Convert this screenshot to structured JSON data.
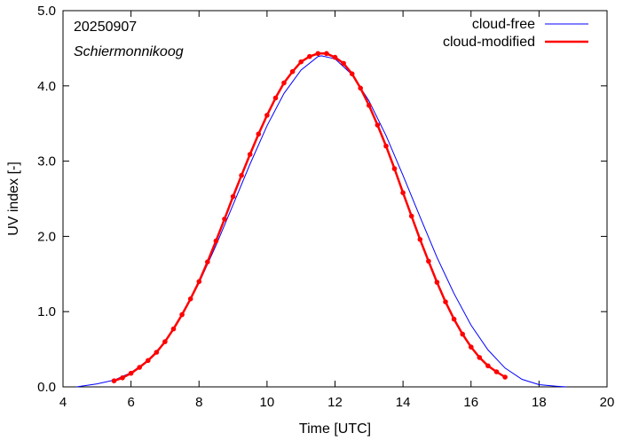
{
  "chart_data": {
    "type": "line",
    "xlabel": "Time  [UTC]",
    "ylabel": "UV index  [-]",
    "xlim": [
      4,
      20
    ],
    "ylim": [
      0.0,
      5.0
    ],
    "xticks": [
      4,
      6,
      8,
      10,
      12,
      14,
      16,
      18,
      20
    ],
    "yticks": [
      "0.0",
      "1.0",
      "2.0",
      "3.0",
      "4.0",
      "5.0"
    ],
    "grid": false,
    "legend_position": "top-right",
    "annotations": {
      "date": "20250907",
      "location": "Schiermonnikoog"
    },
    "series": [
      {
        "name": "cloud-free",
        "color": "#0000ff",
        "marker": "none",
        "x": [
          4.4,
          5.0,
          5.5,
          6.0,
          6.5,
          7.0,
          7.5,
          8.0,
          8.5,
          9.0,
          9.5,
          10.0,
          10.5,
          11.0,
          11.5,
          11.6,
          12.0,
          12.5,
          13.0,
          13.5,
          14.0,
          14.5,
          15.0,
          15.5,
          16.0,
          16.5,
          17.0,
          17.5,
          18.0,
          18.5,
          18.8
        ],
        "y": [
          0.0,
          0.04,
          0.09,
          0.19,
          0.35,
          0.6,
          0.95,
          1.38,
          1.88,
          2.42,
          2.96,
          3.47,
          3.9,
          4.21,
          4.39,
          4.4,
          4.36,
          4.15,
          3.8,
          3.34,
          2.81,
          2.26,
          1.72,
          1.24,
          0.82,
          0.49,
          0.25,
          0.1,
          0.03,
          0.01,
          0.0
        ]
      },
      {
        "name": "cloud-modified",
        "color": "#ff0000",
        "marker": "circle",
        "x": [
          5.5,
          5.75,
          6.0,
          6.25,
          6.5,
          6.75,
          7.0,
          7.25,
          7.5,
          7.75,
          8.0,
          8.25,
          8.5,
          8.75,
          9.0,
          9.25,
          9.5,
          9.75,
          10.0,
          10.25,
          10.5,
          10.75,
          11.0,
          11.25,
          11.5,
          11.75,
          12.0,
          12.25,
          12.5,
          12.75,
          13.0,
          13.25,
          13.5,
          13.75,
          14.0,
          14.25,
          14.5,
          14.75,
          15.0,
          15.25,
          15.5,
          15.75,
          16.0,
          16.25,
          16.5,
          16.75,
          17.0
        ],
        "y": [
          0.08,
          0.12,
          0.18,
          0.26,
          0.35,
          0.46,
          0.6,
          0.77,
          0.96,
          1.17,
          1.4,
          1.66,
          1.94,
          2.23,
          2.53,
          2.81,
          3.09,
          3.36,
          3.61,
          3.84,
          4.04,
          4.19,
          4.32,
          4.39,
          4.43,
          4.43,
          4.38,
          4.3,
          4.16,
          3.97,
          3.74,
          3.48,
          3.2,
          2.9,
          2.58,
          2.27,
          1.96,
          1.67,
          1.39,
          1.13,
          0.9,
          0.7,
          0.53,
          0.39,
          0.28,
          0.2,
          0.13
        ]
      }
    ]
  }
}
